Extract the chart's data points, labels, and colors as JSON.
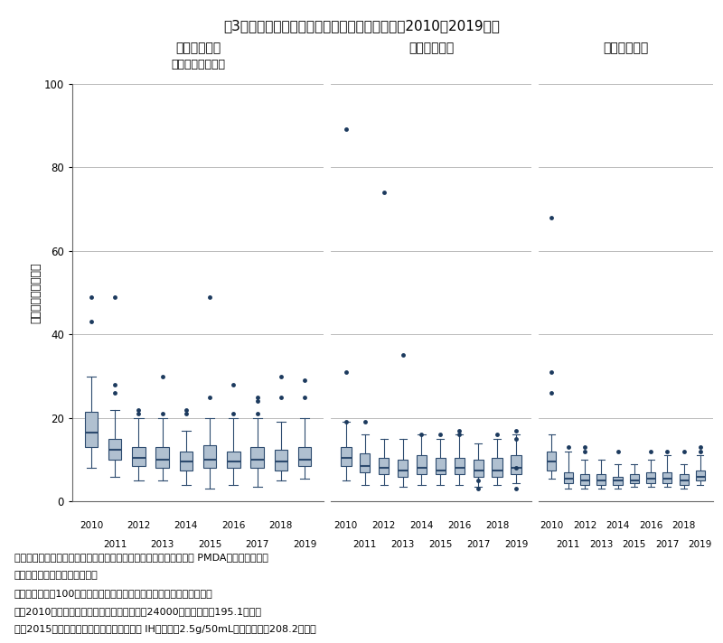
{
  "title": "図3　審査期間（月数）の年次推移（承認年毎；2010～2019年）",
  "ylabel": "申請～承認（月数）",
  "ylim": [
    0,
    100
  ],
  "yticks": [
    0,
    20,
    40,
    60,
    80,
    100
  ],
  "years": [
    2010,
    2011,
    2012,
    2013,
    2014,
    2015,
    2016,
    2017,
    2018,
    2019
  ],
  "panel_titles": [
    "通常審査品目",
    "優先審査品目",
    "迅速処理品目"
  ],
  "panel_subtitles": [
    "（迅速処理除く）",
    "",
    ""
  ],
  "box_facecolor": "#B0C0D0",
  "box_edgecolor": "#2C4A6E",
  "median_color": "#2C4A6E",
  "whisker_color": "#2C4A6E",
  "flier_color": "#1C3A5E",
  "panel1_boxes": [
    {
      "med": 16.5,
      "q1": 13.0,
      "q3": 21.5,
      "whislo": 8.0,
      "whishi": 30.0,
      "fliers": [
        43.0,
        49.0
      ]
    },
    {
      "med": 12.5,
      "q1": 10.0,
      "q3": 15.0,
      "whislo": 6.0,
      "whishi": 22.0,
      "fliers": [
        26.0,
        28.0,
        49.0
      ]
    },
    {
      "med": 10.5,
      "q1": 8.5,
      "q3": 13.0,
      "whislo": 5.0,
      "whishi": 20.0,
      "fliers": [
        21.0,
        22.0
      ]
    },
    {
      "med": 10.0,
      "q1": 8.0,
      "q3": 13.0,
      "whislo": 5.0,
      "whishi": 20.0,
      "fliers": [
        21.0,
        30.0
      ]
    },
    {
      "med": 9.5,
      "q1": 7.5,
      "q3": 12.0,
      "whislo": 4.0,
      "whishi": 17.0,
      "fliers": [
        21.0,
        22.0
      ]
    },
    {
      "med": 10.0,
      "q1": 8.0,
      "q3": 13.5,
      "whislo": 3.0,
      "whishi": 20.0,
      "fliers": [
        25.0,
        49.0
      ]
    },
    {
      "med": 9.5,
      "q1": 8.0,
      "q3": 12.0,
      "whislo": 4.0,
      "whishi": 20.0,
      "fliers": [
        21.0,
        28.0
      ]
    },
    {
      "med": 10.0,
      "q1": 8.0,
      "q3": 13.0,
      "whislo": 3.5,
      "whishi": 20.0,
      "fliers": [
        21.0,
        24.0,
        25.0
      ]
    },
    {
      "med": 9.5,
      "q1": 7.5,
      "q3": 12.5,
      "whislo": 5.0,
      "whishi": 19.0,
      "fliers": [
        25.0,
        30.0
      ]
    },
    {
      "med": 10.0,
      "q1": 8.5,
      "q3": 13.0,
      "whislo": 5.5,
      "whishi": 20.0,
      "fliers": [
        25.0,
        29.0
      ]
    }
  ],
  "panel2_boxes": [
    {
      "med": 10.5,
      "q1": 8.5,
      "q3": 13.0,
      "whislo": 5.0,
      "whishi": 19.0,
      "fliers": [
        19.0,
        31.0,
        89.0
      ]
    },
    {
      "med": 8.5,
      "q1": 7.0,
      "q3": 11.5,
      "whislo": 4.0,
      "whishi": 16.0,
      "fliers": [
        19.0
      ]
    },
    {
      "med": 8.0,
      "q1": 6.5,
      "q3": 10.5,
      "whislo": 4.0,
      "whishi": 15.0,
      "fliers": [
        74.0
      ]
    },
    {
      "med": 7.5,
      "q1": 6.0,
      "q3": 10.0,
      "whislo": 3.5,
      "whishi": 15.0,
      "fliers": [
        35.0
      ]
    },
    {
      "med": 8.0,
      "q1": 6.5,
      "q3": 11.0,
      "whislo": 4.0,
      "whishi": 16.0,
      "fliers": [
        16.0
      ]
    },
    {
      "med": 7.5,
      "q1": 6.5,
      "q3": 10.5,
      "whislo": 4.0,
      "whishi": 15.0,
      "fliers": [
        16.0
      ]
    },
    {
      "med": 8.0,
      "q1": 6.5,
      "q3": 10.5,
      "whislo": 4.0,
      "whishi": 16.0,
      "fliers": [
        16.0,
        17.0
      ]
    },
    {
      "med": 7.5,
      "q1": 6.0,
      "q3": 10.0,
      "whislo": 3.5,
      "whishi": 14.0,
      "fliers": [
        3.0,
        5.0
      ]
    },
    {
      "med": 7.5,
      "q1": 6.0,
      "q3": 10.5,
      "whislo": 4.0,
      "whishi": 15.0,
      "fliers": [
        16.0
      ]
    },
    {
      "med": 8.0,
      "q1": 6.5,
      "q3": 11.0,
      "whislo": 4.5,
      "whishi": 16.0,
      "fliers": [
        3.0,
        8.0,
        15.0,
        17.0
      ]
    }
  ],
  "panel3_boxes": [
    {
      "med": 9.5,
      "q1": 7.5,
      "q3": 12.0,
      "whislo": 5.5,
      "whishi": 16.0,
      "fliers": [
        26.0,
        31.0,
        68.0
      ]
    },
    {
      "med": 5.5,
      "q1": 4.5,
      "q3": 7.0,
      "whislo": 3.0,
      "whishi": 12.0,
      "fliers": [
        13.0
      ]
    },
    {
      "med": 5.0,
      "q1": 4.0,
      "q3": 6.5,
      "whislo": 3.0,
      "whishi": 10.0,
      "fliers": [
        12.0,
        13.0
      ]
    },
    {
      "med": 5.0,
      "q1": 4.0,
      "q3": 6.5,
      "whislo": 3.0,
      "whishi": 10.0,
      "fliers": []
    },
    {
      "med": 5.0,
      "q1": 4.0,
      "q3": 6.0,
      "whislo": 3.0,
      "whishi": 9.0,
      "fliers": [
        12.0
      ]
    },
    {
      "med": 5.0,
      "q1": 4.5,
      "q3": 6.5,
      "whislo": 3.5,
      "whishi": 9.0,
      "fliers": []
    },
    {
      "med": 5.5,
      "q1": 4.5,
      "q3": 7.0,
      "whislo": 3.5,
      "whishi": 10.0,
      "fliers": [
        12.0
      ]
    },
    {
      "med": 5.5,
      "q1": 4.5,
      "q3": 7.0,
      "whislo": 3.5,
      "whishi": 11.0,
      "fliers": [
        12.0
      ]
    },
    {
      "med": 5.0,
      "q1": 4.0,
      "q3": 6.5,
      "whislo": 3.0,
      "whishi": 9.0,
      "fliers": [
        12.0
      ]
    },
    {
      "med": 6.0,
      "q1": 5.0,
      "q3": 7.5,
      "whislo": 4.0,
      "whishi": 11.0,
      "fliers": [
        12.0,
        13.0
      ]
    }
  ],
  "footnote1": "出所：審査報告書、新医薬品の承認品目一覧、添付文書（いずれも PMDA）をもとに医薬",
  "footnote2": "　　　産業政策研究所にて作成",
  "footnote3": "注）審査期間が100ヶ月を超える以下２品目は、グラフから除外した。",
  "footnote4": "　　2010年承認の「エポジン皮下注シリンジ24000」（審査期間195.1ヶ月）",
  "footnote5": "　　2015年承認の「献血ヴェノグロブリン IH５％静注2.5g/50mL」（審査期間208.2ヶ月）"
}
